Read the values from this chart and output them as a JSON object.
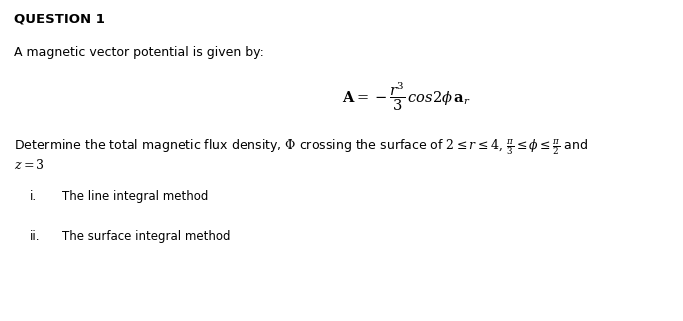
{
  "background_color": "#ffffff",
  "title": "QUESTION 1",
  "line1": "A magnetic vector potential is given by:",
  "item_i_label": "i.",
  "item_i_text": "The line integral method",
  "item_ii_label": "ii.",
  "item_ii_text": "The surface integral method",
  "fontsize_title": 9.5,
  "fontsize_body": 9.0,
  "fontsize_eq": 10.5,
  "fontsize_items": 8.5,
  "fig_width": 6.83,
  "fig_height": 3.21,
  "dpi": 100
}
